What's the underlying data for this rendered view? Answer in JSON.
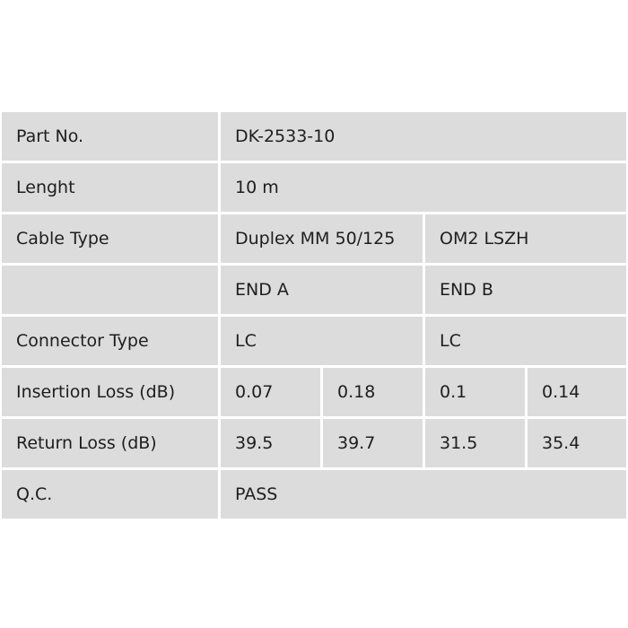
{
  "rows": {
    "part_no": {
      "label": "Part No.",
      "value": "DK-2533-10"
    },
    "length": {
      "label": "Lenght",
      "value": "10 m"
    },
    "cable_type": {
      "label": "Cable Type",
      "value_a": "Duplex MM 50/125",
      "value_b": "OM2 LSZH"
    },
    "ends": {
      "label": "",
      "end_a": "END A",
      "end_b": "END B"
    },
    "connector_type": {
      "label": "Connector Type",
      "end_a": "LC",
      "end_b": "LC"
    },
    "insertion_loss": {
      "label": "Insertion Loss (dB)",
      "values": [
        "0.07",
        "0.18",
        "0.1",
        "0.14"
      ]
    },
    "return_loss": {
      "label": "Return Loss (dB)",
      "values": [
        "39.5",
        "39.7",
        "31.5",
        "35.4"
      ]
    },
    "qc": {
      "label": "Q.C.",
      "value": "PASS"
    }
  },
  "colors": {
    "cell_bg": "#dcdcdc",
    "border": "#ffffff",
    "text": "#1e1e1e"
  }
}
